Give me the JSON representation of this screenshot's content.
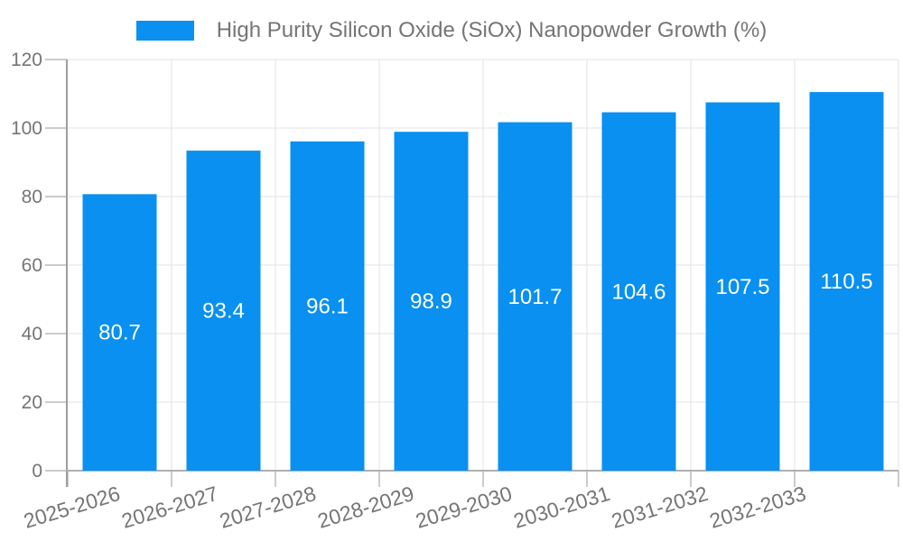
{
  "legend": {
    "label": "High Purity Silicon Oxide (SiOx) Nanopowder Growth (%)"
  },
  "chart_data": {
    "type": "bar",
    "title": "High Purity Silicon Oxide (SiOx) Nanopowder Growth (%)",
    "categories": [
      "2025-2026",
      "2026-2027",
      "2027-2028",
      "2028-2029",
      "2029-2030",
      "2030-2031",
      "2031-2032",
      "2032-2033"
    ],
    "series": [
      {
        "name": "High Purity Silicon Oxide (SiOx) Nanopowder Growth (%)",
        "values": [
          80.7,
          93.4,
          96.1,
          98.9,
          101.7,
          104.6,
          107.5,
          110.5
        ]
      }
    ],
    "value_labels": [
      "80.7",
      "93.4",
      "96.1",
      "98.9",
      "101.7",
      "104.6",
      "107.5",
      "110.5"
    ],
    "xlabel": "",
    "ylabel": "",
    "ylim": [
      0,
      120
    ],
    "yticks": [
      0,
      20,
      40,
      60,
      80,
      100,
      120
    ],
    "grid": true,
    "legend_position": "top",
    "x_label_rotation_deg": -17,
    "colors": {
      "bar": "#0990f0",
      "value_label": "#ffffff",
      "axis_text": "#757575",
      "gridline": "#e3e3e3",
      "axis_line": "#b0b0b0",
      "tick": "#cccccc",
      "background": "#ffffff"
    }
  }
}
